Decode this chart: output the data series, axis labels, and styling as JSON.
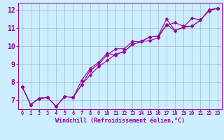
{
  "xlabel": "Windchill (Refroidissement éolien,°C)",
  "background_color": "#cceeff",
  "line_color": "#990099",
  "grid_color": "#99bbcc",
  "xlim": [
    -0.5,
    23.5
  ],
  "ylim": [
    6.5,
    12.4
  ],
  "yticks": [
    7,
    8,
    9,
    10,
    11,
    12
  ],
  "xticks": [
    0,
    1,
    2,
    3,
    4,
    5,
    6,
    7,
    8,
    9,
    10,
    11,
    12,
    13,
    14,
    15,
    16,
    17,
    18,
    19,
    20,
    21,
    22,
    23
  ],
  "lines": [
    {
      "x": [
        0,
        1,
        2,
        3,
        4,
        5,
        6,
        7,
        8,
        9,
        10,
        11,
        12,
        13,
        14,
        15,
        16,
        17,
        18,
        19,
        20,
        21,
        22,
        23
      ],
      "y": [
        7.75,
        6.75,
        7.1,
        7.15,
        6.65,
        7.2,
        7.15,
        7.85,
        8.65,
        9.0,
        9.5,
        9.85,
        9.85,
        10.25,
        10.25,
        10.3,
        10.45,
        11.2,
        10.85,
        11.05,
        11.55,
        11.45,
        12.0,
        12.1
      ]
    },
    {
      "x": [
        0,
        1,
        2,
        3,
        4,
        5,
        6,
        7,
        8,
        9,
        10,
        11,
        12,
        13,
        14,
        15,
        16,
        17,
        18,
        19,
        20,
        21,
        22,
        23
      ],
      "y": [
        7.75,
        6.75,
        7.1,
        7.15,
        6.65,
        7.2,
        7.15,
        8.1,
        8.75,
        9.1,
        9.6,
        9.5,
        9.7,
        10.1,
        10.25,
        10.5,
        10.55,
        11.15,
        11.3,
        11.1,
        11.1,
        11.45,
        12.0,
        12.1
      ]
    },
    {
      "x": [
        0,
        1,
        2,
        3,
        4,
        5,
        6,
        7,
        8,
        9,
        10,
        11,
        12,
        13,
        14,
        15,
        16,
        17,
        18,
        19,
        20,
        21,
        22,
        23
      ],
      "y": [
        7.75,
        6.75,
        7.1,
        7.15,
        6.65,
        7.2,
        7.15,
        7.85,
        8.4,
        8.85,
        9.2,
        9.55,
        9.7,
        10.1,
        10.25,
        10.5,
        10.55,
        11.5,
        10.85,
        11.05,
        11.1,
        11.45,
        11.95,
        12.1
      ]
    }
  ],
  "marker_size": 2.5,
  "line_width": 0.8,
  "tick_fontsize_x": 5,
  "tick_fontsize_y": 7,
  "xlabel_fontsize": 6
}
